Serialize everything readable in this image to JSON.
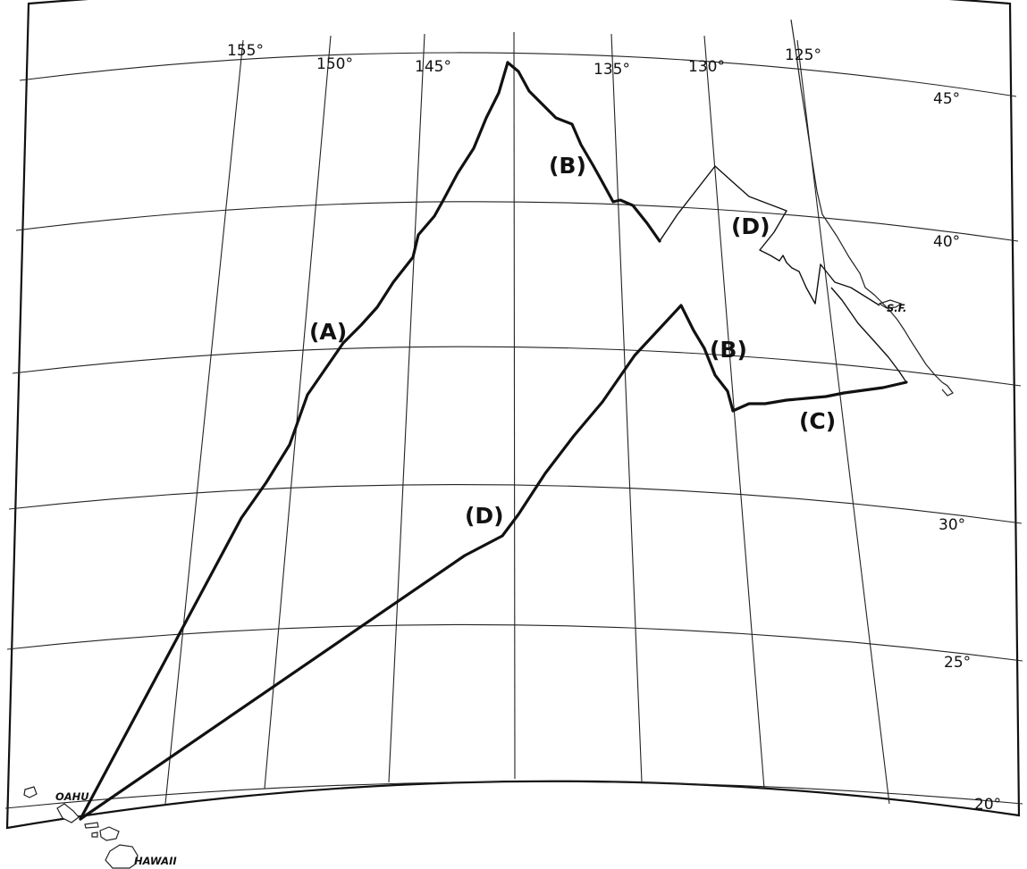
{
  "longitude_labels": [
    {
      "id": "lon-155",
      "text": "155°"
    },
    {
      "id": "lon-150",
      "text": "150°"
    },
    {
      "id": "lon-145",
      "text": "145°"
    },
    {
      "id": "lon-135",
      "text": "135°"
    },
    {
      "id": "lon-130",
      "text": "130°"
    },
    {
      "id": "lon-125",
      "text": "125°"
    }
  ],
  "latitude_labels": [
    {
      "id": "lat-45",
      "text": "45°"
    },
    {
      "id": "lat-40",
      "text": "40°"
    },
    {
      "id": "lat-30",
      "text": "30°"
    },
    {
      "id": "lat-25",
      "text": "25°"
    },
    {
      "id": "lat-20",
      "text": "20°"
    }
  ],
  "route_labels": [
    {
      "id": "route-a",
      "text": "(A)"
    },
    {
      "id": "route-b-north",
      "text": "(B)"
    },
    {
      "id": "route-d-north",
      "text": "(D)"
    },
    {
      "id": "route-b-south",
      "text": "(B)"
    },
    {
      "id": "route-c",
      "text": "(C)"
    },
    {
      "id": "route-d-south",
      "text": "(D)"
    }
  ],
  "place_labels": [
    {
      "id": "oahu",
      "text": "OAHU"
    },
    {
      "id": "hawaii",
      "text": "HAWAII"
    },
    {
      "id": "sf",
      "text": "S.F."
    }
  ]
}
